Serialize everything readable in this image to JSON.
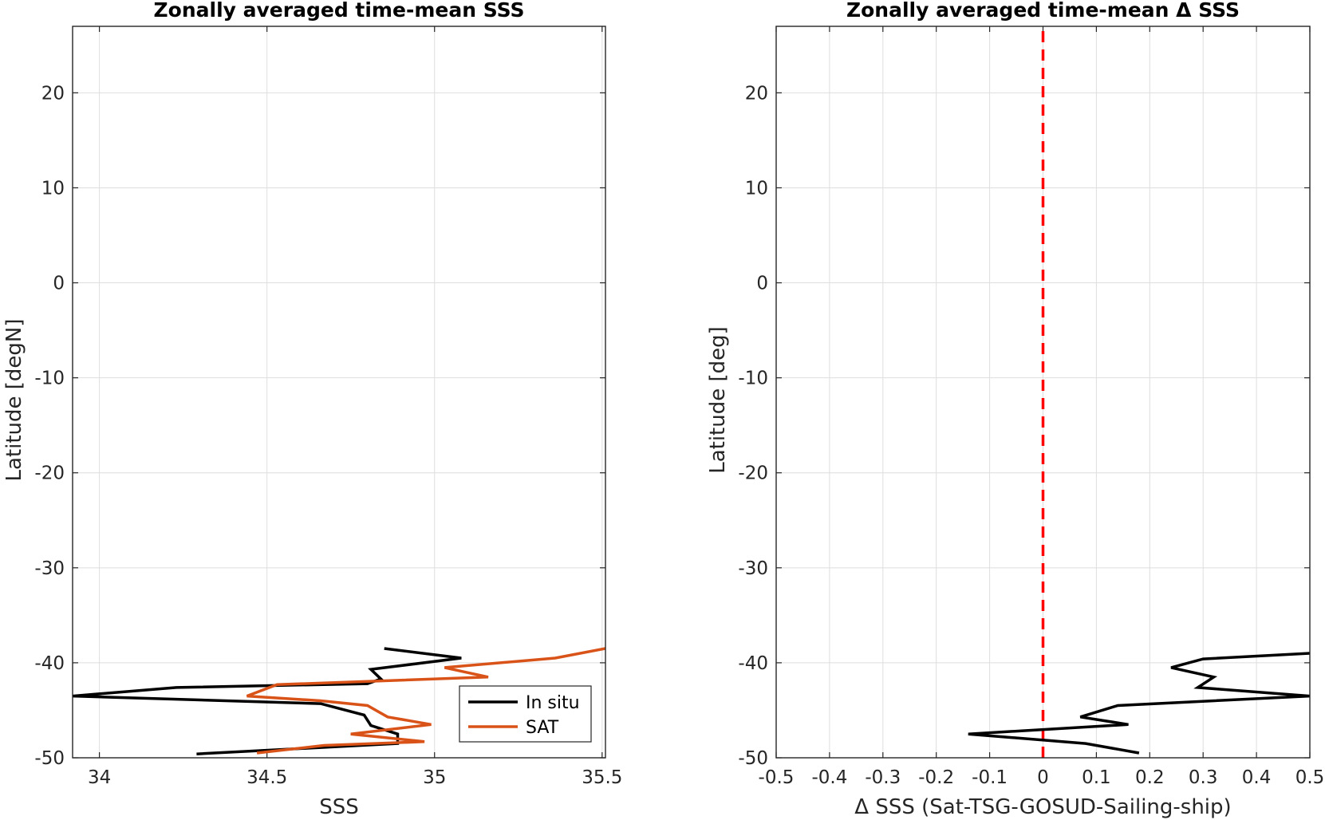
{
  "chart_data": [
    {
      "type": "line",
      "title": "Zonally averaged time-mean SSS",
      "xlabel": "SSS",
      "ylabel": "Latitude [degN]",
      "xlim": [
        33.92,
        35.51
      ],
      "ylim": [
        -50,
        27
      ],
      "xticks": [
        34,
        34.5,
        35,
        35.5
      ],
      "xtick_labels": [
        "34",
        "34.5",
        "35",
        "35.5"
      ],
      "yticks": [
        -50,
        -40,
        -30,
        -20,
        -10,
        0,
        10,
        20
      ],
      "ytick_labels": [
        "-50",
        "-40",
        "-30",
        "-20",
        "-10",
        "0",
        "10",
        "20"
      ],
      "grid": true,
      "legend": {
        "position": "bottom-right"
      },
      "series": [
        {
          "name": "In situ",
          "color": "#000000",
          "x": [
            34.85,
            35.08,
            34.81,
            34.84,
            34.8,
            34.23,
            33.92,
            34.66,
            34.79,
            34.81,
            34.89,
            34.89,
            34.29
          ],
          "y": [
            -38.5,
            -39.5,
            -40.7,
            -41.7,
            -42.2,
            -42.6,
            -43.5,
            -44.3,
            -45.5,
            -46.6,
            -47.5,
            -48.5,
            -49.6
          ]
        },
        {
          "name": "SAT",
          "color": "#D95319",
          "x": [
            35.51,
            35.36,
            35.03,
            35.16,
            34.53,
            34.44,
            34.66,
            34.8,
            34.86,
            34.99,
            34.75,
            34.97,
            34.67,
            34.47
          ],
          "y": [
            -38.5,
            -39.5,
            -40.5,
            -41.5,
            -42.3,
            -43.5,
            -44.0,
            -44.5,
            -45.7,
            -46.5,
            -47.5,
            -48.3,
            -48.7,
            -49.5
          ]
        }
      ]
    },
    {
      "type": "line",
      "title": "Zonally averaged time-mean Δ SSS",
      "xlabel": "Δ SSS (Sat-TSG-GOSUD-Sailing-ship)",
      "ylabel": "Latitude [deg]",
      "xlim": [
        -0.5,
        0.5
      ],
      "ylim": [
        -50,
        27
      ],
      "xticks": [
        -0.5,
        -0.4,
        -0.3,
        -0.2,
        -0.1,
        0,
        0.1,
        0.2,
        0.3,
        0.4,
        0.5
      ],
      "xtick_labels": [
        "-0.5",
        "-0.4",
        "-0.3",
        "-0.2",
        "-0.1",
        "0",
        "0.1",
        "0.2",
        "0.3",
        "0.4",
        "0.5"
      ],
      "yticks": [
        -50,
        -40,
        -30,
        -20,
        -10,
        0,
        10,
        20
      ],
      "ytick_labels": [
        "-50",
        "-40",
        "-30",
        "-20",
        "-10",
        "0",
        "10",
        "20"
      ],
      "grid": true,
      "reference_line": {
        "x": 0,
        "color": "#FF0000",
        "style": "dashed"
      },
      "series": [
        {
          "color": "#000000",
          "x": [
            0.5,
            0.3,
            0.24,
            0.32,
            0.29,
            0.5,
            0.14,
            0.07,
            0.16,
            -0.14,
            0.08,
            0.18
          ],
          "y": [
            -39.0,
            -39.6,
            -40.5,
            -41.5,
            -42.6,
            -43.5,
            -44.5,
            -45.7,
            -46.5,
            -47.5,
            -48.5,
            -49.5
          ]
        }
      ]
    }
  ]
}
